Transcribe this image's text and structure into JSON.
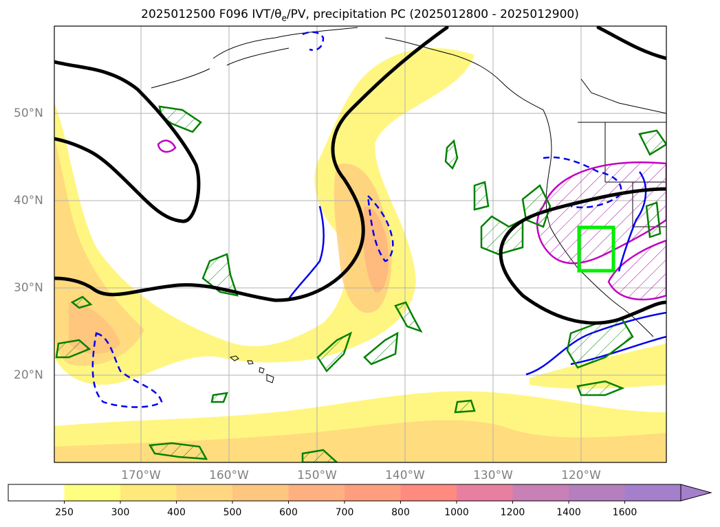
{
  "title": {
    "prefix": "2025012500 F096 IVT/",
    "theta": "θ",
    "subscript": "e",
    "suffix": "/PV, precipitation PC (2025012800 - 2025012900)"
  },
  "map": {
    "lat_labels": [
      "50°N",
      "40°N",
      "30°N",
      "20°N"
    ],
    "lon_labels": [
      "170°W",
      "160°W",
      "150°W",
      "140°W",
      "130°W",
      "120°W"
    ]
  },
  "colorbar": {
    "levels": [
      "250",
      "300",
      "400",
      "500",
      "600",
      "700",
      "800",
      "1000",
      "1200",
      "1400",
      "1600"
    ],
    "colors": [
      "#ffffff",
      "#ffff7f",
      "#ffe97a",
      "#ffd780",
      "#ffc680",
      "#ffb080",
      "#ff9e7e",
      "#ff8a80",
      "#e97fa0",
      "#c980b6",
      "#b57fbf",
      "#a47fcc"
    ]
  },
  "colors": {
    "ivt_low": "#fff57a",
    "ivt_mid": "#ffd77e",
    "ivt_high": "#ffb57c",
    "pv_contour": "#000000",
    "theta_solid": "#0000ee",
    "precip_green": "#008000",
    "region_box": "#00ee00",
    "magenta": "#c000c0"
  }
}
